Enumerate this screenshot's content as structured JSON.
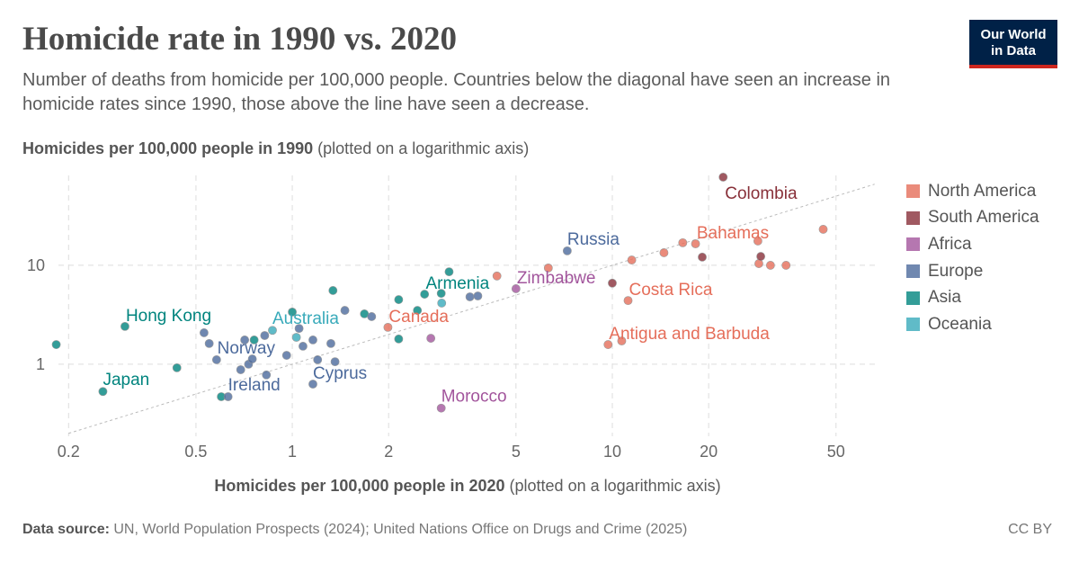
{
  "header": {
    "title": "Homicide rate in 1990 vs. 2020",
    "subtitle": "Number of deaths from homicide per 100,000 people. Countries below the diagonal have seen an increase in homicide rates since 1990, those above the line have seen a decrease."
  },
  "logo": {
    "line1": "Our World",
    "line2": "in Data"
  },
  "footer": {
    "source_label": "Data source:",
    "source_text": "UN, World Population Prospects (2024); United Nations Office on Drugs and Crime (2025)",
    "license": "CC BY"
  },
  "chart_data": {
    "type": "scatter",
    "title": "Homicide rate in 1990 vs. 2020",
    "xlabel": "Homicides per 100,000 people in 2020",
    "xlabel_note": "(plotted on a logarithmic axis)",
    "ylabel": "Homicides per 100,000 people in 1990",
    "ylabel_note": "(plotted on a logarithmic axis)",
    "xscale": "log",
    "yscale": "log",
    "xlim": [
      0.18,
      67
    ],
    "ylim": [
      0.187,
      81
    ],
    "xticks": [
      0.2,
      0.5,
      1,
      2,
      5,
      10,
      20,
      50
    ],
    "xtick_labels": [
      "0.2",
      "0.5",
      "1",
      "2",
      "5",
      "10",
      "20",
      "50"
    ],
    "yticks": [
      1,
      10
    ],
    "ytick_labels": [
      "1",
      "10"
    ],
    "grid": true,
    "reference_line": "y = x",
    "legend_position": "right",
    "legend": [
      {
        "name": "North America",
        "color": "#E56E5A"
      },
      {
        "name": "South America",
        "color": "#883039"
      },
      {
        "name": "Africa",
        "color": "#A2559C"
      },
      {
        "name": "Europe",
        "color": "#4C6A9C"
      },
      {
        "name": "Asia",
        "color": "#00847E"
      },
      {
        "name": "Oceania",
        "color": "#38AABA"
      }
    ],
    "labeled_points": [
      {
        "name": "Colombia",
        "region": "South America",
        "x": 22.2,
        "y": 77.8
      },
      {
        "name": "Bahamas",
        "region": "North America",
        "x": 28.5,
        "y": 17.6
      },
      {
        "name": "Russia",
        "region": "Europe",
        "x": 7.23,
        "y": 14.0
      },
      {
        "name": "Zimbabwe",
        "region": "Africa",
        "x": 5.0,
        "y": 5.8
      },
      {
        "name": "Costa Rica",
        "region": "North America",
        "x": 11.2,
        "y": 4.4
      },
      {
        "name": "Antigua and Barbuda",
        "region": "North America",
        "x": 9.7,
        "y": 1.58
      },
      {
        "name": "Morocco",
        "region": "Africa",
        "x": 2.92,
        "y": 0.36
      },
      {
        "name": "Canada",
        "region": "North America",
        "x": 1.99,
        "y": 2.36
      },
      {
        "name": "Armenia",
        "region": "Asia",
        "x": 3.09,
        "y": 8.6
      },
      {
        "name": "Australia",
        "region": "Oceania",
        "x": 0.867,
        "y": 2.2
      },
      {
        "name": "Hong Kong",
        "region": "Asia",
        "x": 0.3,
        "y": 2.41
      },
      {
        "name": "Norway",
        "region": "Europe",
        "x": 0.75,
        "y": 1.13
      },
      {
        "name": "Ireland",
        "region": "Europe",
        "x": 0.63,
        "y": 0.47
      },
      {
        "name": "Cyprus",
        "region": "Europe",
        "x": 1.16,
        "y": 0.63
      },
      {
        "name": "Japan",
        "region": "Asia",
        "x": 0.256,
        "y": 0.53
      }
    ],
    "points": [
      {
        "region": "Asia",
        "x": 0.183,
        "y": 1.58
      },
      {
        "region": "Asia",
        "x": 0.436,
        "y": 0.92
      },
      {
        "region": "Europe",
        "x": 0.53,
        "y": 2.08
      },
      {
        "region": "Europe",
        "x": 0.55,
        "y": 1.62
      },
      {
        "region": "Europe",
        "x": 0.58,
        "y": 1.11
      },
      {
        "region": "Asia",
        "x": 0.6,
        "y": 0.47
      },
      {
        "region": "Europe",
        "x": 0.69,
        "y": 0.88
      },
      {
        "region": "Europe",
        "x": 0.73,
        "y": 1.0
      },
      {
        "region": "Europe",
        "x": 0.71,
        "y": 1.76
      },
      {
        "region": "Asia",
        "x": 0.76,
        "y": 1.76
      },
      {
        "region": "Europe",
        "x": 0.82,
        "y": 1.95
      },
      {
        "region": "Europe",
        "x": 0.83,
        "y": 0.78
      },
      {
        "region": "Europe",
        "x": 0.96,
        "y": 1.23
      },
      {
        "region": "Asia",
        "x": 1.0,
        "y": 3.37
      },
      {
        "region": "Oceania",
        "x": 1.03,
        "y": 1.87
      },
      {
        "region": "Europe",
        "x": 1.05,
        "y": 2.3
      },
      {
        "region": "Europe",
        "x": 1.08,
        "y": 1.52
      },
      {
        "region": "Europe",
        "x": 1.16,
        "y": 1.76
      },
      {
        "region": "Europe",
        "x": 1.32,
        "y": 1.62
      },
      {
        "region": "Europe",
        "x": 1.2,
        "y": 1.11
      },
      {
        "region": "Europe",
        "x": 1.36,
        "y": 1.06
      },
      {
        "region": "Asia",
        "x": 1.34,
        "y": 5.56
      },
      {
        "region": "Europe",
        "x": 1.46,
        "y": 3.5
      },
      {
        "region": "Asia",
        "x": 1.68,
        "y": 3.23
      },
      {
        "region": "Europe",
        "x": 1.77,
        "y": 3.03
      },
      {
        "region": "Asia",
        "x": 2.15,
        "y": 1.8
      },
      {
        "region": "Asia",
        "x": 2.15,
        "y": 4.5
      },
      {
        "region": "Asia",
        "x": 2.59,
        "y": 5.1
      },
      {
        "region": "Asia",
        "x": 2.92,
        "y": 5.2
      },
      {
        "region": "Oceania",
        "x": 2.93,
        "y": 4.15
      },
      {
        "region": "Europe",
        "x": 3.59,
        "y": 4.8
      },
      {
        "region": "Europe",
        "x": 3.8,
        "y": 4.9
      },
      {
        "region": "Africa",
        "x": 2.71,
        "y": 1.83
      },
      {
        "region": "Asia",
        "x": 2.46,
        "y": 3.5
      },
      {
        "region": "North America",
        "x": 6.31,
        "y": 9.4
      },
      {
        "region": "North America",
        "x": 4.36,
        "y": 7.8
      },
      {
        "region": "North America",
        "x": 11.5,
        "y": 11.3
      },
      {
        "region": "North America",
        "x": 14.5,
        "y": 13.4
      },
      {
        "region": "North America",
        "x": 16.6,
        "y": 16.9
      },
      {
        "region": "North America",
        "x": 18.2,
        "y": 16.5
      },
      {
        "region": "North America",
        "x": 28.7,
        "y": 10.4
      },
      {
        "region": "North America",
        "x": 31.2,
        "y": 10.0
      },
      {
        "region": "North America",
        "x": 34.9,
        "y": 10.0
      },
      {
        "region": "North America",
        "x": 45.6,
        "y": 23.1
      },
      {
        "region": "North America",
        "x": 10.7,
        "y": 1.72
      },
      {
        "region": "South America",
        "x": 19.1,
        "y": 12.1
      },
      {
        "region": "South America",
        "x": 29.1,
        "y": 12.3
      },
      {
        "region": "South America",
        "x": 10.0,
        "y": 6.6
      }
    ]
  }
}
